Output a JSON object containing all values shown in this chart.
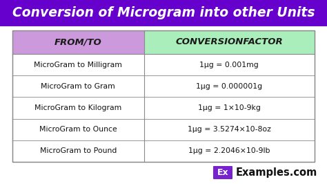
{
  "title": "Conversion of Microgram into other Units",
  "title_bg_color": "#6600CC",
  "title_text_color": "#FFFFFF",
  "header_col1": "FROM/TO",
  "header_col2": "CONVERSIONFACTOR",
  "header_col1_bg": "#CC99DD",
  "header_col2_bg": "#AAEEBB",
  "rows": [
    [
      "MicroGram to Milligram",
      "1μg = 0.001mg"
    ],
    [
      "MicroGram to Gram",
      "1μg = 0.000001g"
    ],
    [
      "MicroGram to Kilogram",
      "1μg = 1×10-9kg"
    ],
    [
      "MicroGram to Ounce",
      "1μg = 3.5274×10-8oz"
    ],
    [
      "MicroGram to Pound",
      "1μg = 2.2046×10-9lb"
    ]
  ],
  "table_border_color": "#888888",
  "watermark_box_color": "#7722CC",
  "watermark_text": "Ex",
  "watermark_label": "Examples.com",
  "watermark_text_color": "#FFFFFF",
  "watermark_label_color": "#111111",
  "fig_bg": "#FFFFFF",
  "title_fontsize": 13.5,
  "header_fontsize": 9.5,
  "row_fontsize": 7.8
}
